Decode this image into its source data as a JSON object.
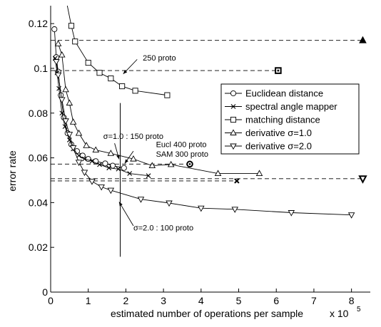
{
  "chart_data": {
    "type": "line",
    "xlabel": "estimated number of operations per sample",
    "xlabel_multiplier": "x 10",
    "xlabel_exponent": "5",
    "ylabel": "error rate",
    "xlim": [
      0,
      8.5
    ],
    "ylim": [
      0,
      0.128
    ],
    "x_ticks": [
      0,
      1,
      2,
      3,
      4,
      5,
      6,
      7,
      8
    ],
    "x_tick_labels": [
      "0",
      "1",
      "2",
      "3",
      "4",
      "5",
      "6",
      "7",
      "8"
    ],
    "y_ticks": [
      0,
      0.02,
      0.04,
      0.06,
      0.08,
      0.1,
      0.12
    ],
    "y_tick_labels": [
      "0",
      "0.02",
      "0.04",
      "0.06",
      "0.08",
      "0.1",
      "0.12"
    ],
    "grid": false,
    "legend_position": "right",
    "series": [
      {
        "name": "Euclidean distance",
        "marker": "circle",
        "x": [
          0.1,
          0.15,
          0.2,
          0.27,
          0.35,
          0.45,
          0.55,
          0.7,
          0.85,
          1.0,
          1.2,
          1.45,
          1.65,
          1.95
        ],
        "y": [
          0.1175,
          0.105,
          0.0985,
          0.088,
          0.078,
          0.071,
          0.066,
          0.063,
          0.061,
          0.0595,
          0.0585,
          0.0575,
          0.0565,
          0.0555
        ]
      },
      {
        "name": "spectral angle mapper",
        "marker": "x",
        "x": [
          0.12,
          0.17,
          0.22,
          0.3,
          0.38,
          0.5,
          0.6,
          0.75,
          0.9,
          1.1,
          1.3,
          1.55,
          1.8,
          2.1,
          2.6
        ],
        "y": [
          0.1045,
          0.098,
          0.091,
          0.08,
          0.074,
          0.068,
          0.064,
          0.061,
          0.0595,
          0.0585,
          0.057,
          0.0555,
          0.055,
          0.053,
          0.052
        ]
      },
      {
        "name": "matching distance",
        "marker": "square",
        "x": [
          0.3,
          0.55,
          0.65,
          1.0,
          1.3,
          1.6,
          1.9,
          2.25,
          3.1
        ],
        "y": [
          0.14,
          0.119,
          0.112,
          0.1025,
          0.098,
          0.0955,
          0.092,
          0.09,
          0.088
        ]
      },
      {
        "name": "derivative σ=1.0",
        "marker": "triangle-up",
        "x": [
          0.2,
          0.3,
          0.4,
          0.5,
          0.6,
          0.75,
          0.95,
          1.2,
          1.6,
          2.2,
          2.7,
          3.2,
          4.45,
          5.55
        ],
        "y": [
          0.111,
          0.106,
          0.0905,
          0.0845,
          0.076,
          0.071,
          0.0655,
          0.0635,
          0.062,
          0.0595,
          0.0565,
          0.057,
          0.053,
          0.053
        ]
      },
      {
        "name": "derivative σ=2.0",
        "marker": "triangle-down",
        "x": [
          0.15,
          0.2,
          0.3,
          0.4,
          0.5,
          0.6,
          0.75,
          0.9,
          1.1,
          1.35,
          1.6,
          2.4,
          3.15,
          4.0,
          4.9,
          6.4,
          8.0
        ],
        "y": [
          0.103,
          0.097,
          0.086,
          0.0765,
          0.0705,
          0.0645,
          0.058,
          0.0535,
          0.0495,
          0.047,
          0.0455,
          0.0415,
          0.0398,
          0.0375,
          0.037,
          0.0355,
          0.0345
        ]
      }
    ],
    "reference_lines": [
      {
        "marker": "triangle-up",
        "y": 0.1125,
        "x_end": 8.3
      },
      {
        "marker": "square",
        "y": 0.099,
        "x_end": 6.05
      },
      {
        "marker": "circle",
        "y": 0.0572,
        "x_end": 3.7
      },
      {
        "marker": "triangle-down",
        "y": 0.0507,
        "x_end": 8.3
      },
      {
        "marker": "x",
        "y": 0.0497,
        "x_end": 4.95
      }
    ],
    "vertical_line_x": 1.85,
    "annotations": [
      {
        "text": "250 proto",
        "x": 2.45,
        "y": 0.1035
      },
      {
        "text": "σ=1.0 : 150 proto",
        "x": 1.4,
        "y": 0.0685
      },
      {
        "text": "Eucl 400 proto",
        "x": 2.8,
        "y": 0.0648
      },
      {
        "text": "SAM 300 proto",
        "x": 2.8,
        "y": 0.0605
      },
      {
        "text": "σ=2.0 : 100 proto",
        "x": 2.2,
        "y": 0.0275
      }
    ]
  }
}
